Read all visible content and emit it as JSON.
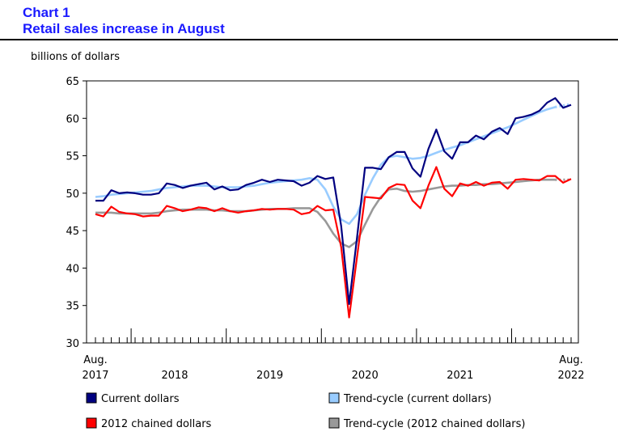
{
  "header": {
    "chart_number": "Chart 1",
    "title": "Retail sales increase in August"
  },
  "colors": {
    "current": "#000080",
    "current_trend": "#99ccff",
    "chained": "#ff0000",
    "chained_trend": "#999999"
  },
  "chart_data": {
    "type": "line",
    "title": "Retail sales increase in August",
    "ylabel": "billions of dollars",
    "xlabel": "",
    "ylim": [
      30,
      65
    ],
    "yticks": [
      30,
      35,
      40,
      45,
      50,
      55,
      60,
      65
    ],
    "x_start": "2017-08",
    "x_end": "2022-08",
    "x_labels": [
      {
        "index": 0,
        "line1": "Aug.",
        "line2": "2017"
      },
      {
        "index": 10,
        "line1": "",
        "line2": "2018"
      },
      {
        "index": 22,
        "line1": "",
        "line2": "2019"
      },
      {
        "index": 34,
        "line1": "",
        "line2": "2020"
      },
      {
        "index": 46,
        "line1": "",
        "line2": "2021"
      },
      {
        "index": 60,
        "line1": "Aug.",
        "line2": "2022"
      }
    ],
    "year_boundaries": [
      4.5,
      16.5,
      28.5,
      40.5,
      52.5
    ],
    "series": [
      {
        "name": "Current dollars",
        "key": "current",
        "values": [
          49.0,
          49.0,
          50.4,
          50.0,
          50.1,
          50.0,
          49.8,
          49.8,
          50.0,
          51.3,
          51.1,
          50.7,
          51.0,
          51.2,
          51.4,
          50.5,
          50.9,
          50.4,
          50.5,
          51.1,
          51.4,
          51.8,
          51.5,
          51.8,
          51.7,
          51.6,
          51.0,
          51.4,
          52.3,
          51.9,
          52.1,
          45.6,
          35.2,
          44.1,
          53.4,
          53.4,
          53.2,
          54.8,
          55.5,
          55.5,
          53.3,
          52.2,
          55.9,
          58.5,
          55.6,
          54.6,
          56.8,
          56.8,
          57.7,
          57.2,
          58.2,
          58.7,
          57.9,
          60.0,
          60.2,
          60.5,
          61.0,
          62.1,
          62.7,
          61.4,
          61.8
        ]
      },
      {
        "name": "Trend-cycle (current dollars)",
        "key": "current_trend",
        "values": [
          49.5,
          49.6,
          49.8,
          49.9,
          50.0,
          50.1,
          50.2,
          50.3,
          50.5,
          50.7,
          50.8,
          50.9,
          51.0,
          51.0,
          51.0,
          50.9,
          50.8,
          50.8,
          50.8,
          50.9,
          51.0,
          51.2,
          51.4,
          51.5,
          51.6,
          51.7,
          51.8,
          52.0,
          51.8,
          50.5,
          48.2,
          46.5,
          45.9,
          47.2,
          49.8,
          52.0,
          53.8,
          54.8,
          55.0,
          54.8,
          54.6,
          54.7,
          55.0,
          55.4,
          55.8,
          56.1,
          56.4,
          56.8,
          57.2,
          57.6,
          58.0,
          58.4,
          58.8,
          59.3,
          59.8,
          60.3,
          60.8,
          61.2,
          61.5,
          61.7,
          61.9
        ],
        "projected_from": 58
      },
      {
        "name": "2012 chained dollars",
        "key": "chained",
        "values": [
          47.2,
          46.9,
          48.2,
          47.5,
          47.3,
          47.2,
          46.9,
          47.0,
          47.0,
          48.3,
          48.0,
          47.6,
          47.8,
          48.1,
          48.0,
          47.6,
          48.0,
          47.6,
          47.4,
          47.6,
          47.7,
          47.9,
          47.8,
          47.9,
          47.9,
          47.8,
          47.2,
          47.4,
          48.3,
          47.7,
          47.8,
          42.8,
          33.4,
          41.5,
          49.5,
          49.4,
          49.3,
          50.7,
          51.2,
          51.1,
          49.0,
          48.0,
          51.0,
          53.5,
          50.6,
          49.6,
          51.3,
          51.0,
          51.5,
          51.0,
          51.4,
          51.5,
          50.6,
          51.8,
          51.9,
          51.8,
          51.7,
          52.3,
          52.3,
          51.4,
          51.9
        ]
      },
      {
        "name": "Trend-cycle (2012 chained dollars)",
        "key": "chained_trend",
        "values": [
          47.4,
          47.4,
          47.4,
          47.3,
          47.3,
          47.3,
          47.3,
          47.3,
          47.4,
          47.6,
          47.7,
          47.8,
          47.8,
          47.8,
          47.8,
          47.7,
          47.7,
          47.6,
          47.6,
          47.6,
          47.7,
          47.8,
          47.9,
          47.9,
          47.9,
          48.0,
          48.0,
          48.0,
          47.5,
          46.3,
          44.6,
          43.3,
          42.8,
          43.6,
          45.8,
          47.9,
          49.5,
          50.5,
          50.6,
          50.3,
          50.2,
          50.3,
          50.5,
          50.7,
          50.9,
          51.0,
          51.0,
          51.1,
          51.1,
          51.2,
          51.2,
          51.3,
          51.4,
          51.5,
          51.6,
          51.7,
          51.8,
          51.8,
          51.8,
          51.8,
          51.8
        ],
        "projected_from": 58
      }
    ],
    "legend": [
      {
        "key": "current",
        "label": "Current dollars"
      },
      {
        "key": "current_trend",
        "label": "Trend-cycle (current dollars)"
      },
      {
        "key": "chained",
        "label": "2012 chained dollars"
      },
      {
        "key": "chained_trend",
        "label": "Trend-cycle (2012 chained dollars)"
      }
    ]
  }
}
